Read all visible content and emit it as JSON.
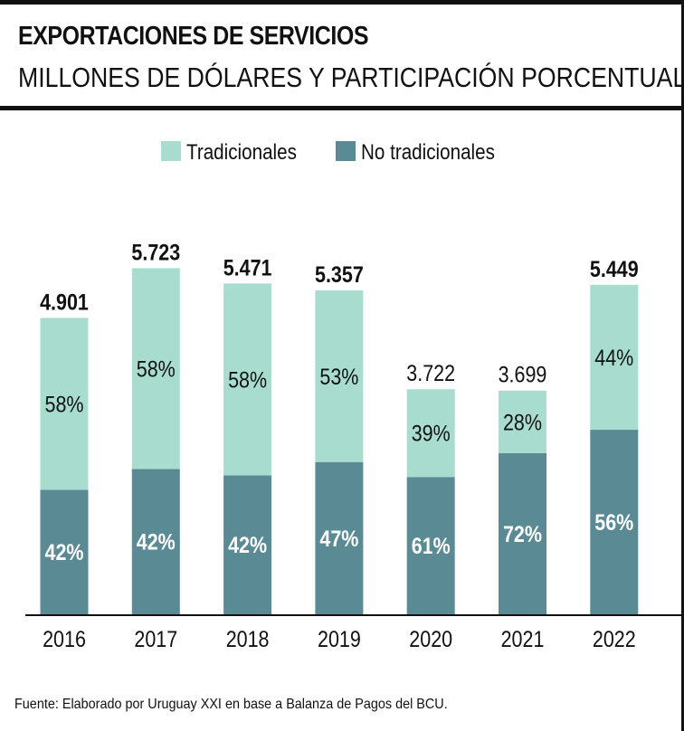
{
  "header": {
    "title": "EXPORTACIONES DE SERVICIOS",
    "subtitle": "MILLONES DE DÓLARES Y PARTICIPACIÓN PORCENTUAL"
  },
  "footer": {
    "source": "Fuente: Elaborado por Uruguay XXI en base a Balanza de Pagos del BCU."
  },
  "chart_data": {
    "type": "bar",
    "stacked": true,
    "categories": [
      "2016",
      "2017",
      "2018",
      "2019",
      "2020",
      "2021",
      "2022"
    ],
    "totals": [
      4901,
      5723,
      5471,
      5357,
      3722,
      3699,
      5449
    ],
    "total_labels": [
      "4.901",
      "5.723",
      "5.471",
      "5.357",
      "3.722",
      "3.699",
      "5.449"
    ],
    "total_label_bold": [
      true,
      true,
      true,
      true,
      false,
      false,
      true
    ],
    "series": [
      {
        "name": "No tradicionales",
        "color": "#5a8a94",
        "shares": [
          42,
          42,
          42,
          47,
          61,
          72,
          56
        ],
        "labels": [
          "42%",
          "42%",
          "42%",
          "47%",
          "61%",
          "72%",
          "56%"
        ]
      },
      {
        "name": "Tradicionales",
        "color": "#a8dccf",
        "shares": [
          58,
          58,
          58,
          53,
          39,
          28,
          44
        ],
        "labels": [
          "58%",
          "58%",
          "58%",
          "53%",
          "39%",
          "28%",
          "44%"
        ]
      }
    ],
    "legend": {
      "position": "top-center",
      "items": [
        {
          "label": "Tradicionales",
          "color": "#a8dccf"
        },
        {
          "label": "No tradicionales",
          "color": "#5a8a94"
        }
      ]
    },
    "ylim": [
      0,
      6000
    ],
    "grid": false,
    "title": "",
    "xlabel": "",
    "ylabel": ""
  }
}
